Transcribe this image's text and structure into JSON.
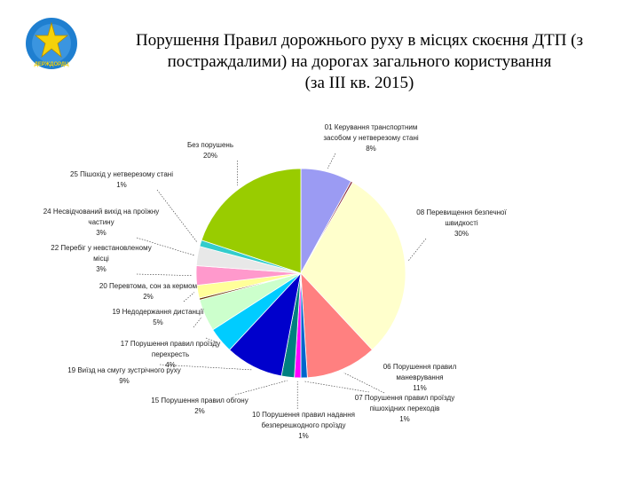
{
  "logo": {
    "text": "ДЕРЖДОРДЦ",
    "icon": "yellow-star-emblem-icon",
    "color": "#1f7fd0"
  },
  "title": {
    "line1": "Порушення Правил дорожнього руху в місцях скоєння ДТП (з",
    "line2": "постраждалими) на дорогах загального користування",
    "line3": "(за ІІІ кв. 2015)"
  },
  "chart_data": {
    "type": "pie",
    "start": "top, clockwise",
    "slices": [
      {
        "lines": [
          "01 Керування транспортним",
          "засобом у нетверезому стані",
          "8%"
        ],
        "value": 8,
        "color": "#9b9bf3"
      },
      {
        "lines": [],
        "value": 0.3,
        "color": "#8a2c3c"
      },
      {
        "lines": [
          "08 Перевищення безпечної",
          "швидкості",
          "30%"
        ],
        "value": 30,
        "color": "#ffffcc"
      },
      {
        "lines": [
          "06 Порушення правил",
          "маневрування",
          "11%"
        ],
        "value": 11,
        "color": "#ff8080"
      },
      {
        "lines": [
          "07 Порушення правил проїзду",
          "пішохідних переходів",
          "1%"
        ],
        "value": 1,
        "color": "#0066cc"
      },
      {
        "lines": [
          "10 Порушення правил надання",
          "безперешкодного проїзду",
          "1%"
        ],
        "value": 1,
        "color": "#ff00ff"
      },
      {
        "lines": [
          "15 Порушення правил обгону",
          "2%"
        ],
        "value": 2,
        "color": "#008080"
      },
      {
        "lines": [
          "19 Виїзд на смугу зустрічного руху",
          "9%"
        ],
        "value": 9,
        "color": "#0000cc"
      },
      {
        "lines": [
          "17 Порушення правил проїзду",
          "перехресть",
          "4%"
        ],
        "value": 4,
        "color": "#00ccff"
      },
      {
        "lines": [
          "19 Недодержання дистанції",
          "5%"
        ],
        "value": 5,
        "color": "#ccffcc"
      },
      {
        "lines": [],
        "value": 0.3,
        "color": "#663300"
      },
      {
        "lines": [
          "20 Перевтома, сон за кермом",
          "2%"
        ],
        "value": 2,
        "color": "#ffff99"
      },
      {
        "lines": [
          "22 Перебіг у невстановленому",
          "місці",
          "3%"
        ],
        "value": 3,
        "color": "#ff99cc"
      },
      {
        "lines": [
          "24 Несвідчований вихід на проїжну",
          "частину",
          "3%"
        ],
        "value": 3,
        "color": "#e8e8e8"
      },
      {
        "lines": [
          "25 Пішохід у нетверезому стані",
          "1%"
        ],
        "value": 1,
        "color": "#33cccc"
      },
      {
        "lines": [
          "Без порушень",
          "20%"
        ],
        "value": 20,
        "color": "#99cc00"
      }
    ]
  }
}
